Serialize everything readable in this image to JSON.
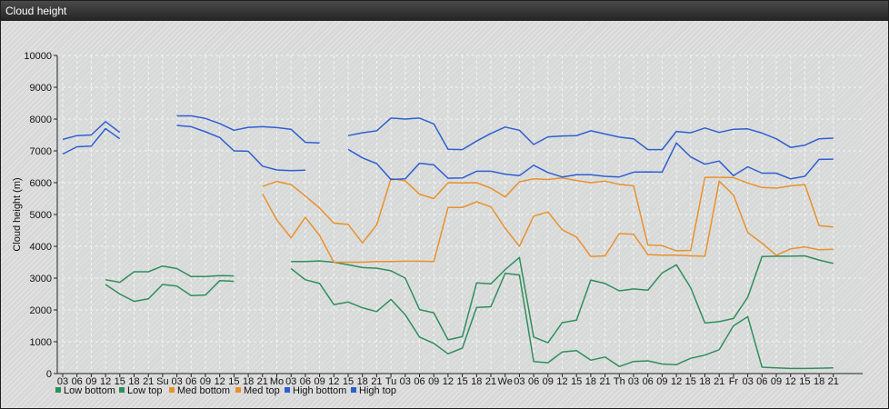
{
  "window": {
    "title": "Cloud height"
  },
  "chart_data": {
    "type": "line",
    "title": "",
    "xlabel": "",
    "ylabel": "Cloud height (m)",
    "ylim": [
      0,
      10000
    ],
    "yticks": [
      0,
      1000,
      2000,
      3000,
      4000,
      5000,
      6000,
      7000,
      8000,
      9000,
      10000
    ],
    "categories": [
      "03",
      "06",
      "09",
      "12",
      "15",
      "18",
      "21",
      "Su",
      "03",
      "06",
      "09",
      "12",
      "15",
      "18",
      "21",
      "Mo",
      "03",
      "06",
      "09",
      "12",
      "15",
      "18",
      "21",
      "Tu",
      "03",
      "06",
      "09",
      "12",
      "15",
      "18",
      "21",
      "We",
      "03",
      "06",
      "09",
      "12",
      "15",
      "18",
      "21",
      "Th",
      "03",
      "06",
      "09",
      "12",
      "15",
      "18",
      "21",
      "Fr",
      "03",
      "06",
      "09",
      "12",
      "15",
      "18",
      "21"
    ],
    "grid": true,
    "legend_position": "bottom-left",
    "series": [
      {
        "name": "Low bottom",
        "color": "#2f8f5b",
        "values": [
          null,
          null,
          null,
          2800,
          2500,
          2270,
          2350,
          2800,
          2750,
          2450,
          2470,
          2920,
          2900,
          null,
          null,
          null,
          3300,
          2950,
          2830,
          2170,
          2250,
          2070,
          1950,
          2330,
          1850,
          1150,
          950,
          620,
          800,
          2080,
          2100,
          3150,
          3100,
          380,
          340,
          680,
          720,
          420,
          520,
          220,
          380,
          400,
          300,
          280,
          480,
          580,
          750,
          1500,
          1790,
          200,
          180,
          160,
          160,
          170,
          180
        ]
      },
      {
        "name": "Low top",
        "color": "#2f8f5b",
        "values": [
          null,
          null,
          null,
          2950,
          2870,
          3200,
          3200,
          3380,
          3300,
          3050,
          3050,
          3080,
          3070,
          null,
          null,
          null,
          3520,
          3520,
          3540,
          3500,
          3420,
          3330,
          3310,
          3230,
          3000,
          2010,
          1910,
          1060,
          1160,
          2850,
          2820,
          3270,
          3650,
          1150,
          970,
          1600,
          1680,
          2940,
          2830,
          2600,
          2660,
          2620,
          3160,
          3420,
          2700,
          1590,
          1630,
          1730,
          2400,
          3680,
          3690,
          3690,
          3700,
          3570,
          3460
        ]
      },
      {
        "name": "Med bottom",
        "color": "#e8922c",
        "values": [
          null,
          null,
          null,
          null,
          null,
          null,
          null,
          null,
          null,
          null,
          null,
          null,
          null,
          null,
          5650,
          4830,
          4270,
          4910,
          4340,
          3500,
          3500,
          3500,
          3520,
          3520,
          3530,
          3530,
          3520,
          5220,
          5220,
          5400,
          5240,
          4570,
          4000,
          4950,
          5080,
          4520,
          4290,
          3680,
          3700,
          4400,
          4380,
          3740,
          3720,
          3720,
          3700,
          3690,
          6050,
          5610,
          4430,
          4100,
          3720,
          3920,
          3980,
          3890,
          3910
        ]
      },
      {
        "name": "Med top",
        "color": "#e8922c",
        "values": [
          null,
          null,
          null,
          null,
          null,
          null,
          null,
          null,
          null,
          null,
          null,
          null,
          null,
          null,
          5880,
          6040,
          5940,
          5580,
          5200,
          4730,
          4690,
          4110,
          4670,
          6130,
          6060,
          5640,
          5500,
          6000,
          5990,
          6000,
          5830,
          5550,
          6030,
          6120,
          6100,
          6150,
          6070,
          6000,
          6050,
          5950,
          5900,
          4040,
          4020,
          3860,
          3870,
          6170,
          6170,
          6160,
          5990,
          5850,
          5830,
          5900,
          5940,
          4650,
          4610
        ]
      },
      {
        "name": "High bottom",
        "color": "#2e5fd0",
        "values": [
          6900,
          7130,
          7150,
          7700,
          7380,
          null,
          null,
          null,
          7800,
          7760,
          7600,
          7420,
          7000,
          6990,
          6520,
          6400,
          6380,
          6390,
          null,
          null,
          7050,
          6780,
          6600,
          6100,
          6120,
          6610,
          6560,
          6140,
          6150,
          6360,
          6360,
          6270,
          6220,
          6550,
          6320,
          6180,
          6250,
          6250,
          6200,
          6180,
          6330,
          6340,
          6330,
          7250,
          6810,
          6580,
          6680,
          6220,
          6500,
          6300,
          6300,
          6120,
          6200,
          6730,
          6740
        ]
      },
      {
        "name": "High top",
        "color": "#2e5fd0",
        "values": [
          7360,
          7480,
          7500,
          7920,
          7580,
          null,
          null,
          null,
          8100,
          8100,
          8020,
          7860,
          7650,
          7740,
          7760,
          7730,
          7680,
          7270,
          7250,
          null,
          7480,
          7570,
          7630,
          8030,
          8000,
          8030,
          7850,
          7050,
          7040,
          7310,
          7550,
          7750,
          7650,
          7200,
          7440,
          7470,
          7480,
          7630,
          7530,
          7430,
          7380,
          7040,
          7040,
          7610,
          7570,
          7720,
          7580,
          7680,
          7690,
          7560,
          7380,
          7110,
          7180,
          7380,
          7400
        ]
      }
    ]
  }
}
